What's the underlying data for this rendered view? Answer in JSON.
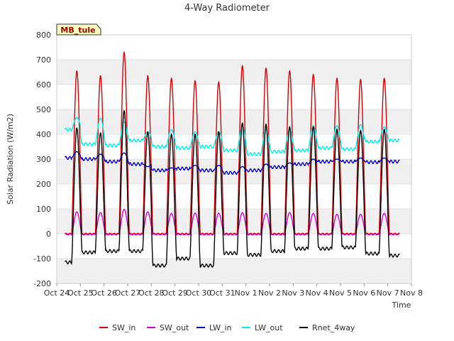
{
  "chart_data": {
    "type": "line",
    "title": "4-Way Radiometer",
    "xlabel": "Time",
    "ylabel": "Solar Radiation (W/m2)",
    "site_label": "MB_tule",
    "ylim": [
      -200,
      800
    ],
    "yticks": [
      -200,
      -100,
      0,
      100,
      200,
      300,
      400,
      500,
      600,
      700,
      800
    ],
    "xlim": [
      0,
      15
    ],
    "xticks": [
      {
        "v": 0,
        "label": "Oct 24"
      },
      {
        "v": 1,
        "label": "Oct 25"
      },
      {
        "v": 2,
        "label": "Oct 26"
      },
      {
        "v": 3,
        "label": "Oct 27"
      },
      {
        "v": 4,
        "label": "Oct 28"
      },
      {
        "v": 5,
        "label": "Oct 29"
      },
      {
        "v": 6,
        "label": "Oct 30"
      },
      {
        "v": 7,
        "label": "Oct 31"
      },
      {
        "v": 8,
        "label": "Nov 1"
      },
      {
        "v": 9,
        "label": "Nov 2"
      },
      {
        "v": 10,
        "label": "Nov 3"
      },
      {
        "v": 11,
        "label": "Nov 4"
      },
      {
        "v": 12,
        "label": "Nov 5"
      },
      {
        "v": 13,
        "label": "Nov 6"
      },
      {
        "v": 14,
        "label": "Nov 7"
      },
      {
        "v": 15,
        "label": "Nov 8"
      }
    ],
    "x_range": [
      0.35,
      14.5
    ],
    "day_centers": [
      0.85,
      1.85,
      2.85,
      3.85,
      4.85,
      5.85,
      6.85,
      7.85,
      8.85,
      9.85,
      10.85,
      11.85,
      12.85,
      13.85
    ],
    "series": [
      {
        "name": "SW_in",
        "color": "#dd0000",
        "day_peak": [
          655,
          635,
          730,
          635,
          625,
          615,
          610,
          675,
          665,
          655,
          640,
          625,
          620,
          625
        ],
        "night": [
          0,
          0,
          0,
          0,
          0,
          0,
          0,
          0,
          0,
          0,
          0,
          0,
          0,
          0,
          0
        ]
      },
      {
        "name": "SW_out",
        "color": "#dd00dd",
        "day_peak": [
          88,
          85,
          98,
          88,
          82,
          83,
          83,
          85,
          82,
          85,
          82,
          78,
          78,
          82
        ],
        "night": [
          -3,
          -3,
          -3,
          -3,
          -3,
          -3,
          -3,
          -3,
          -3,
          -3,
          -3,
          -3,
          -3,
          -3,
          -3
        ]
      },
      {
        "name": "LW_in",
        "color": "#0000cc",
        "day_peak": [
          330,
          320,
          325,
          270,
          265,
          275,
          275,
          270,
          280,
          285,
          300,
          300,
          305,
          305
        ],
        "night": [
          305,
          300,
          290,
          280,
          255,
          262,
          255,
          245,
          255,
          268,
          280,
          290,
          290,
          288,
          290
        ]
      },
      {
        "name": "LW_out",
        "color": "#00eeee",
        "day_peak": [
          468,
          465,
          450,
          410,
          420,
          410,
          410,
          430,
          420,
          420,
          435,
          435,
          440,
          430
        ],
        "night": [
          418,
          360,
          355,
          375,
          350,
          345,
          350,
          335,
          320,
          330,
          335,
          345,
          340,
          370,
          375
        ]
      },
      {
        "name": "Rnet_4way",
        "color": "#000000",
        "day_peak": [
          425,
          405,
          495,
          410,
          400,
          400,
          410,
          445,
          440,
          430,
          430,
          420,
          415,
          420
        ],
        "night": [
          -115,
          -75,
          -70,
          -70,
          -128,
          -100,
          -128,
          -78,
          -85,
          -70,
          -60,
          -60,
          -55,
          -80,
          -88
        ]
      }
    ]
  }
}
